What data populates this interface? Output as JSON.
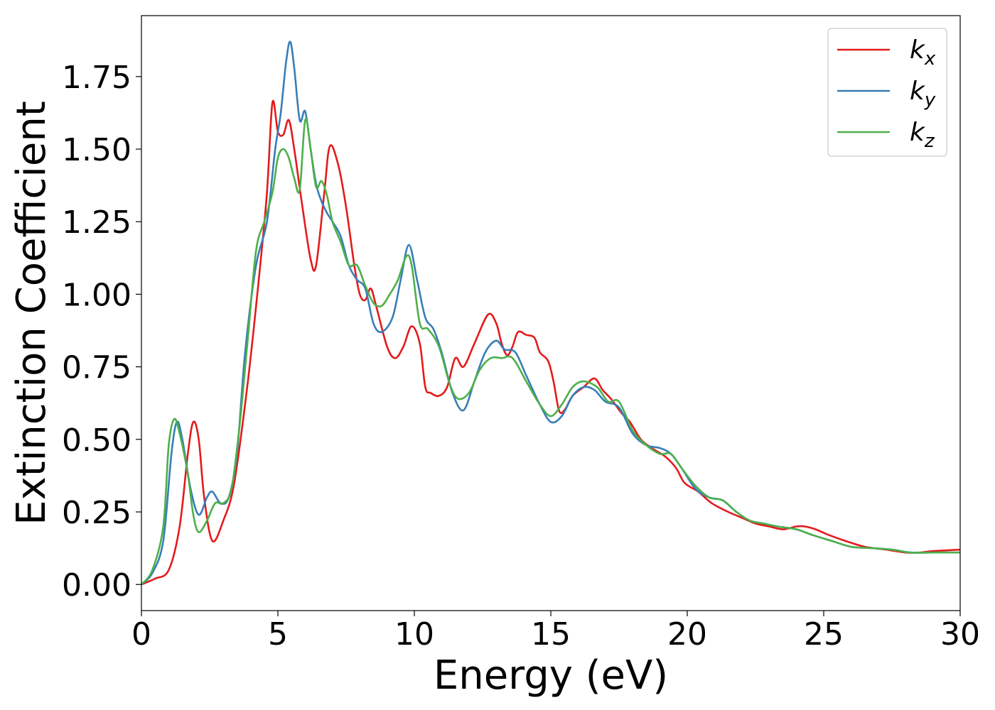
{
  "chart_data": {
    "type": "line",
    "title": "",
    "xlabel": "Energy (eV)",
    "ylabel": "Extinction Coefficient",
    "xlim": [
      0,
      30
    ],
    "ylim": [
      -0.09,
      1.96
    ],
    "xticks": [
      0,
      5,
      10,
      15,
      20,
      25,
      30
    ],
    "xtick_labels": [
      "0",
      "5",
      "10",
      "15",
      "20",
      "25",
      "30"
    ],
    "yticks": [
      0.0,
      0.25,
      0.5,
      0.75,
      1.0,
      1.25,
      1.5,
      1.75
    ],
    "ytick_labels": [
      "0.00",
      "0.25",
      "0.50",
      "0.75",
      "1.00",
      "1.25",
      "1.50",
      "1.75"
    ],
    "grid": false,
    "legend_position": "top-right",
    "series": [
      {
        "name": "k_x",
        "label_main": "k",
        "label_sub": "x",
        "color": "#e41a1c",
        "points": [
          [
            0,
            0
          ],
          [
            0.5,
            0.02
          ],
          [
            1,
            0.05
          ],
          [
            1.4,
            0.2
          ],
          [
            1.7,
            0.45
          ],
          [
            1.9,
            0.56
          ],
          [
            2.1,
            0.5
          ],
          [
            2.3,
            0.3
          ],
          [
            2.6,
            0.15
          ],
          [
            3.0,
            0.22
          ],
          [
            3.4,
            0.35
          ],
          [
            3.9,
            0.7
          ],
          [
            4.3,
            1.05
          ],
          [
            4.6,
            1.35
          ],
          [
            4.8,
            1.66
          ],
          [
            5.0,
            1.56
          ],
          [
            5.2,
            1.55
          ],
          [
            5.4,
            1.6
          ],
          [
            5.6,
            1.5
          ],
          [
            5.9,
            1.3
          ],
          [
            6.2,
            1.12
          ],
          [
            6.4,
            1.1
          ],
          [
            6.7,
            1.35
          ],
          [
            6.9,
            1.51
          ],
          [
            7.2,
            1.45
          ],
          [
            7.5,
            1.3
          ],
          [
            7.8,
            1.1
          ],
          [
            8.0,
            1.0
          ],
          [
            8.2,
            0.98
          ],
          [
            8.4,
            1.02
          ],
          [
            8.6,
            0.96
          ],
          [
            9.0,
            0.82
          ],
          [
            9.3,
            0.78
          ],
          [
            9.6,
            0.82
          ],
          [
            9.9,
            0.89
          ],
          [
            10.2,
            0.83
          ],
          [
            10.4,
            0.68
          ],
          [
            10.6,
            0.66
          ],
          [
            10.9,
            0.65
          ],
          [
            11.2,
            0.68
          ],
          [
            11.5,
            0.78
          ],
          [
            11.8,
            0.75
          ],
          [
            12.2,
            0.83
          ],
          [
            12.7,
            0.93
          ],
          [
            13.0,
            0.9
          ],
          [
            13.2,
            0.83
          ],
          [
            13.4,
            0.79
          ],
          [
            13.6,
            0.82
          ],
          [
            13.8,
            0.87
          ],
          [
            14.1,
            0.86
          ],
          [
            14.4,
            0.85
          ],
          [
            14.6,
            0.8
          ],
          [
            14.9,
            0.77
          ],
          [
            15.1,
            0.7
          ],
          [
            15.3,
            0.6
          ],
          [
            15.5,
            0.6
          ],
          [
            15.8,
            0.65
          ],
          [
            16.2,
            0.68
          ],
          [
            16.6,
            0.71
          ],
          [
            16.9,
            0.67
          ],
          [
            17.2,
            0.64
          ],
          [
            17.6,
            0.59
          ],
          [
            17.9,
            0.56
          ],
          [
            18.3,
            0.5
          ],
          [
            18.7,
            0.47
          ],
          [
            19.2,
            0.44
          ],
          [
            19.6,
            0.4
          ],
          [
            19.9,
            0.35
          ],
          [
            20.4,
            0.32
          ],
          [
            20.9,
            0.28
          ],
          [
            21.5,
            0.25
          ],
          [
            22.0,
            0.23
          ],
          [
            22.5,
            0.21
          ],
          [
            23.0,
            0.2
          ],
          [
            23.5,
            0.19
          ],
          [
            24.0,
            0.2
          ],
          [
            24.3,
            0.2
          ],
          [
            24.7,
            0.19
          ],
          [
            25.2,
            0.17
          ],
          [
            25.8,
            0.15
          ],
          [
            26.5,
            0.13
          ],
          [
            27.3,
            0.12
          ],
          [
            28.0,
            0.11
          ],
          [
            28.5,
            0.11
          ],
          [
            29.0,
            0.115
          ],
          [
            30,
            0.12
          ]
        ]
      },
      {
        "name": "k_y",
        "label_main": "k",
        "label_sub": "y",
        "color": "#377eb8",
        "points": [
          [
            0,
            0
          ],
          [
            0.4,
            0.04
          ],
          [
            0.8,
            0.15
          ],
          [
            1.1,
            0.45
          ],
          [
            1.3,
            0.56
          ],
          [
            1.5,
            0.5
          ],
          [
            1.8,
            0.33
          ],
          [
            2.1,
            0.24
          ],
          [
            2.4,
            0.3
          ],
          [
            2.6,
            0.32
          ],
          [
            2.9,
            0.28
          ],
          [
            3.2,
            0.3
          ],
          [
            3.5,
            0.45
          ],
          [
            3.8,
            0.8
          ],
          [
            4.2,
            1.1
          ],
          [
            4.6,
            1.25
          ],
          [
            4.9,
            1.5
          ],
          [
            5.1,
            1.62
          ],
          [
            5.3,
            1.8
          ],
          [
            5.45,
            1.87
          ],
          [
            5.6,
            1.78
          ],
          [
            5.8,
            1.6
          ],
          [
            6.0,
            1.63
          ],
          [
            6.2,
            1.5
          ],
          [
            6.4,
            1.38
          ],
          [
            6.6,
            1.32
          ],
          [
            6.8,
            1.28
          ],
          [
            7.0,
            1.25
          ],
          [
            7.3,
            1.2
          ],
          [
            7.6,
            1.1
          ],
          [
            7.9,
            1.05
          ],
          [
            8.2,
            1.02
          ],
          [
            8.5,
            0.9
          ],
          [
            8.8,
            0.87
          ],
          [
            9.2,
            0.92
          ],
          [
            9.5,
            1.05
          ],
          [
            9.8,
            1.17
          ],
          [
            10.1,
            1.05
          ],
          [
            10.4,
            0.92
          ],
          [
            10.7,
            0.88
          ],
          [
            11.0,
            0.8
          ],
          [
            11.4,
            0.66
          ],
          [
            11.8,
            0.6
          ],
          [
            12.2,
            0.7
          ],
          [
            12.6,
            0.8
          ],
          [
            13.0,
            0.84
          ],
          [
            13.3,
            0.81
          ],
          [
            13.7,
            0.8
          ],
          [
            14.1,
            0.72
          ],
          [
            14.6,
            0.62
          ],
          [
            15.0,
            0.56
          ],
          [
            15.4,
            0.58
          ],
          [
            15.8,
            0.65
          ],
          [
            16.2,
            0.68
          ],
          [
            16.6,
            0.67
          ],
          [
            17.0,
            0.63
          ],
          [
            17.5,
            0.61
          ],
          [
            18.0,
            0.52
          ],
          [
            18.5,
            0.48
          ],
          [
            19.0,
            0.47
          ],
          [
            19.4,
            0.45
          ],
          [
            19.8,
            0.4
          ],
          [
            20.3,
            0.33
          ],
          [
            20.8,
            0.3
          ],
          [
            21.3,
            0.29
          ],
          [
            21.8,
            0.25
          ],
          [
            22.3,
            0.22
          ],
          [
            22.8,
            0.21
          ],
          [
            23.3,
            0.2
          ],
          [
            24.0,
            0.19
          ],
          [
            24.6,
            0.17
          ],
          [
            25.3,
            0.15
          ],
          [
            26.0,
            0.13
          ],
          [
            26.8,
            0.125
          ],
          [
            27.5,
            0.12
          ],
          [
            28.2,
            0.11
          ],
          [
            29.0,
            0.11
          ],
          [
            30,
            0.11
          ]
        ]
      },
      {
        "name": "k_z",
        "label_main": "k",
        "label_sub": "z",
        "color": "#4daf4a",
        "points": [
          [
            0,
            0
          ],
          [
            0.4,
            0.05
          ],
          [
            0.8,
            0.2
          ],
          [
            1.0,
            0.48
          ],
          [
            1.2,
            0.57
          ],
          [
            1.4,
            0.52
          ],
          [
            1.7,
            0.38
          ],
          [
            1.9,
            0.24
          ],
          [
            2.1,
            0.18
          ],
          [
            2.4,
            0.22
          ],
          [
            2.7,
            0.28
          ],
          [
            3.0,
            0.28
          ],
          [
            3.3,
            0.33
          ],
          [
            3.6,
            0.55
          ],
          [
            3.9,
            0.85
          ],
          [
            4.2,
            1.15
          ],
          [
            4.5,
            1.25
          ],
          [
            4.8,
            1.35
          ],
          [
            5.0,
            1.47
          ],
          [
            5.2,
            1.5
          ],
          [
            5.4,
            1.47
          ],
          [
            5.6,
            1.4
          ],
          [
            5.8,
            1.36
          ],
          [
            6.0,
            1.6
          ],
          [
            6.2,
            1.5
          ],
          [
            6.4,
            1.37
          ],
          [
            6.6,
            1.39
          ],
          [
            6.8,
            1.34
          ],
          [
            7.0,
            1.25
          ],
          [
            7.3,
            1.18
          ],
          [
            7.6,
            1.1
          ],
          [
            7.9,
            1.1
          ],
          [
            8.2,
            1.03
          ],
          [
            8.5,
            0.97
          ],
          [
            8.8,
            0.96
          ],
          [
            9.1,
            1.0
          ],
          [
            9.4,
            1.05
          ],
          [
            9.7,
            1.13
          ],
          [
            9.9,
            1.1
          ],
          [
            10.2,
            0.9
          ],
          [
            10.5,
            0.88
          ],
          [
            10.9,
            0.82
          ],
          [
            11.3,
            0.69
          ],
          [
            11.6,
            0.64
          ],
          [
            12.0,
            0.66
          ],
          [
            12.4,
            0.74
          ],
          [
            12.8,
            0.78
          ],
          [
            13.2,
            0.78
          ],
          [
            13.6,
            0.78
          ],
          [
            14.1,
            0.7
          ],
          [
            14.6,
            0.62
          ],
          [
            15.0,
            0.58
          ],
          [
            15.4,
            0.62
          ],
          [
            15.8,
            0.68
          ],
          [
            16.2,
            0.7
          ],
          [
            16.7,
            0.68
          ],
          [
            17.1,
            0.63
          ],
          [
            17.5,
            0.63
          ],
          [
            18.0,
            0.53
          ],
          [
            18.5,
            0.48
          ],
          [
            19.0,
            0.45
          ],
          [
            19.4,
            0.45
          ],
          [
            19.8,
            0.4
          ],
          [
            20.3,
            0.34
          ],
          [
            20.8,
            0.3
          ],
          [
            21.3,
            0.29
          ],
          [
            21.8,
            0.25
          ],
          [
            22.3,
            0.22
          ],
          [
            22.8,
            0.21
          ],
          [
            23.3,
            0.2
          ],
          [
            24.0,
            0.19
          ],
          [
            24.6,
            0.17
          ],
          [
            25.3,
            0.15
          ],
          [
            26.0,
            0.13
          ],
          [
            26.8,
            0.125
          ],
          [
            27.5,
            0.12
          ],
          [
            28.2,
            0.11
          ],
          [
            29.0,
            0.11
          ],
          [
            30,
            0.11
          ]
        ]
      }
    ]
  }
}
